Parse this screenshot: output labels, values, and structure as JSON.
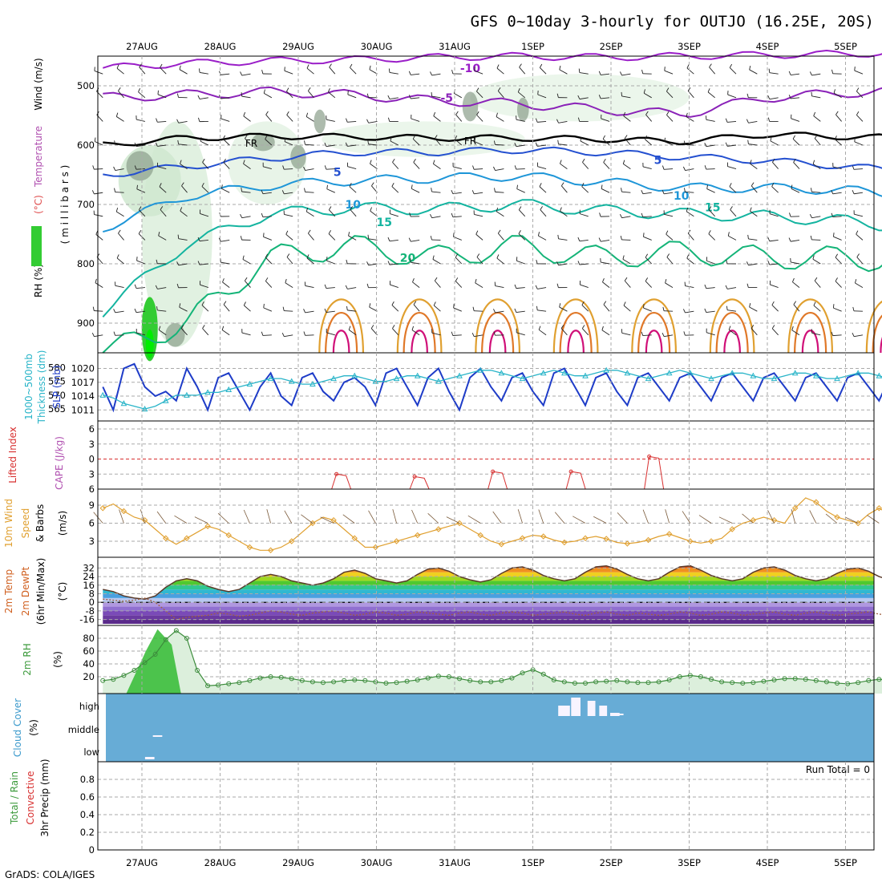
{
  "title": "GFS 0~10day 3-hourly for OUTJO (16.25E, 20S)",
  "footer": "GrADS: COLA/IGES",
  "chart_data": {
    "type": "meteogram",
    "dates": [
      "27AUG",
      "28AUG",
      "29AUG",
      "30AUG",
      "31AUG",
      "1SEP",
      "2SEP",
      "3SEP",
      "4SEP",
      "5SEP"
    ],
    "panels": {
      "upper": {
        "ylabels": [
          {
            "text": "Wind (m/s)",
            "color": "#000000"
          },
          {
            "text": "Temperature (°C)",
            "color": "#000000"
          },
          {
            "text": "RH (%)",
            "color": "#000000"
          },
          {
            "text": "(millibars)",
            "color": "#000000"
          }
        ],
        "ylabel_parts": {
          "wind": "Wind (m/s)",
          "temp_a": "Temperature ",
          "temp_b": "(°C)",
          "rh": "RH (%)",
          "mb": "( m i l l i b a r s )"
        },
        "pressure_ticks": [
          500,
          600,
          700,
          800,
          900
        ],
        "ylim": [
          450,
          950
        ],
        "isotherms": [
          {
            "label": "-10",
            "color": "#9a1ec8",
            "base": [
              470,
              462,
              458,
              456,
              452,
              450,
              452,
              450,
              448,
              446,
              444
            ],
            "amp": 6
          },
          {
            "label": "-5",
            "color": "#8a22b8",
            "base": [
              520,
              515,
              510,
              515,
              525,
              530,
              540,
              548,
              520,
              512,
              505
            ],
            "amp": 8
          },
          {
            "label": "FR",
            "color": "#000000",
            "base": [
              600,
              588,
              585,
              586,
              588,
              588,
              590,
              594,
              582,
              586,
              588
            ],
            "amp": 5
          },
          {
            "label": "5",
            "color": "#2450d0",
            "base": [
              650,
              636,
              622,
              612,
              612,
              608,
              612,
              620,
              626,
              636,
              648
            ],
            "amp": 6
          },
          {
            "label": "10",
            "color": "#1e96d8",
            "base": [
              740,
              686,
              668,
              660,
              656,
              652,
              662,
              672,
              672,
              676,
              690
            ],
            "amp": 8
          },
          {
            "label": "15",
            "color": "#14b4a0",
            "base": [
              880,
              768,
              716,
              706,
              708,
              700,
              710,
              716,
              720,
              728,
              744
            ],
            "amp": 10
          },
          {
            "label": "20",
            "color": "#14b478",
            "base": [
              950,
              900,
              790,
              770,
              790,
              770,
              790,
              780,
              790,
              790,
              800
            ],
            "amp": 20
          }
        ],
        "contour_labels": [
          {
            "text": "-10",
            "x": 4.2,
            "p": 470
          },
          {
            "text": "-5",
            "x": 3.9,
            "p": 520
          },
          {
            "text": "FR",
            "x": 1.4,
            "p": 596
          },
          {
            "text": "FR",
            "x": 4.2,
            "p": 592
          },
          {
            "text": "5",
            "x": 2.5,
            "p": 645
          },
          {
            "text": "5",
            "x": 6.6,
            "p": 625
          },
          {
            "text": "10",
            "x": 2.7,
            "p": 700
          },
          {
            "text": "10",
            "x": 6.9,
            "p": 685
          },
          {
            "text": "15",
            "x": 3.1,
            "p": 730
          },
          {
            "text": "15",
            "x": 7.3,
            "p": 705
          },
          {
            "text": "20",
            "x": 3.4,
            "p": 790
          }
        ],
        "warm_cells_day_offsets": [
          2.55,
          3.55,
          4.55,
          5.55,
          6.55,
          7.55,
          8.55,
          9.55
        ],
        "warm_cell_colors": [
          "#e0a030",
          "#e07828",
          "#d01078"
        ]
      },
      "slp": {
        "ylabel_left": [
          "1000~500mb",
          "Thickness (dm)"
        ],
        "ylabel_right": "SLP (mb)",
        "thickness_ticks": [
          565,
          570,
          575,
          580
        ],
        "slp_ticks": [
          1011,
          1014,
          1017,
          1020
        ],
        "slp_color": "#1e3cc8",
        "thickness_color": "#28b4c8",
        "slp": [
          1016,
          1011,
          1020,
          1021,
          1016,
          1014,
          1015,
          1013,
          1020,
          1016,
          1011,
          1018,
          1019,
          1015,
          1011,
          1016,
          1019,
          1014,
          1012,
          1018,
          1019,
          1015,
          1013,
          1017,
          1018,
          1016,
          1012,
          1019,
          1020,
          1016,
          1012,
          1018,
          1020,
          1015,
          1011,
          1018,
          1020,
          1016,
          1013,
          1018,
          1019,
          1015,
          1012,
          1019,
          1020,
          1016,
          1012,
          1018,
          1019,
          1015,
          1012,
          1018,
          1019,
          1016,
          1013,
          1018,
          1019,
          1016,
          1013,
          1018,
          1019,
          1016,
          1013,
          1018,
          1019,
          1016,
          1013,
          1018,
          1019,
          1016,
          1013,
          1018,
          1019,
          1016,
          1013,
          1018,
          1019,
          1016,
          1013,
          1018
        ],
        "thickness": [
          570,
          569,
          567,
          566,
          565,
          566,
          568,
          570,
          570,
          570,
          571,
          571,
          572,
          573,
          574,
          575,
          576,
          576,
          575,
          574,
          574,
          575,
          576,
          577,
          577,
          576,
          575,
          575,
          576,
          577,
          577,
          576,
          575,
          576,
          577,
          578,
          579,
          579,
          578,
          577,
          576,
          577,
          578,
          579,
          578,
          577,
          577,
          578,
          579,
          579,
          578,
          577,
          576,
          577,
          578,
          579,
          578,
          577,
          576,
          577,
          578,
          578,
          577,
          576,
          576,
          577,
          578,
          578,
          577,
          576,
          576,
          577,
          578,
          578,
          577,
          576,
          576,
          577,
          578,
          577
        ]
      },
      "cape": {
        "ylabel_left": "Lifted Index",
        "ylabel_right": "CAPE (J/kg)",
        "li_ticks": [
          -6,
          -3,
          0,
          3,
          6
        ],
        "li_color": "#d83030",
        "spikes": [
          {
            "day": 2.55,
            "li": 3
          },
          {
            "day": 3.55,
            "li": 3.5
          },
          {
            "day": 4.55,
            "li": 2.5
          },
          {
            "day": 5.55,
            "li": 2.5
          },
          {
            "day": 6.55,
            "li": -0.5
          }
        ]
      },
      "wind10": {
        "ylabel": [
          "10m Wind",
          "Speed",
          "& Barbs"
        ],
        "ylabel_unit": "(m/s)",
        "ticks": [
          3,
          6,
          9
        ],
        "color": "#e0a030",
        "speed": [
          8.5,
          9.2,
          8.0,
          7.0,
          6.5,
          5.0,
          3.5,
          2.5,
          3.5,
          4.5,
          5.5,
          5.0,
          4.0,
          3.0,
          2.0,
          1.5,
          1.5,
          2.0,
          3.0,
          4.5,
          6.0,
          7.0,
          6.5,
          5.0,
          3.5,
          2.0,
          2.0,
          2.5,
          3.0,
          3.5,
          4.0,
          4.5,
          5.0,
          5.5,
          6.0,
          5.0,
          4.0,
          3.0,
          2.5,
          3.0,
          3.5,
          4.0,
          3.8,
          3.2,
          2.8,
          3.0,
          3.5,
          3.8,
          3.4,
          2.8,
          2.6,
          2.8,
          3.2,
          3.8,
          4.2,
          3.6,
          3.0,
          2.7,
          3.0,
          3.5,
          5.0,
          6.0,
          6.5,
          7.0,
          6.5,
          6.0,
          8.5,
          10.2,
          9.5,
          8.0,
          7.0,
          6.5,
          6.0,
          7.5,
          8.5,
          7.5,
          6.0,
          5.0,
          5.5,
          6.5
        ]
      },
      "temp2m": {
        "ylabel": [
          "2m Temp",
          "2m DewPt",
          "(6hr Min/Max)"
        ],
        "ylabel_unit": "(°C)",
        "ticks": [
          32,
          24,
          16,
          8,
          0,
          -8,
          -16
        ],
        "temp": [
          12,
          10,
          6,
          4,
          3,
          6,
          14,
          20,
          22,
          20,
          15,
          12,
          10,
          12,
          18,
          24,
          26,
          24,
          20,
          18,
          16,
          18,
          22,
          28,
          30,
          27,
          22,
          20,
          18,
          20,
          26,
          31,
          32,
          29,
          24,
          21,
          19,
          21,
          27,
          32,
          33,
          30,
          25,
          22,
          20,
          22,
          28,
          33,
          34,
          31,
          26,
          22,
          20,
          22,
          28,
          33,
          34,
          30,
          25,
          22,
          20,
          22,
          28,
          32,
          33,
          30,
          25,
          22,
          20,
          22,
          27,
          31,
          32,
          29,
          24,
          21,
          20,
          21,
          22,
          23
        ],
        "dewpt": [
          3,
          2,
          1,
          2,
          4,
          0,
          -8,
          -16,
          -14,
          -13,
          -12,
          -10,
          -11,
          -13,
          -12,
          -10,
          -8,
          -9,
          -11,
          -12,
          -10,
          -9,
          -8,
          -10,
          -12,
          -11,
          -9,
          -10,
          -12,
          -11,
          -9,
          -10,
          -11,
          -12,
          -10,
          -9,
          -11,
          -12,
          -10,
          -9,
          -10,
          -12,
          -11,
          -10,
          -9,
          -11,
          -12,
          -10,
          -9,
          -11,
          -12,
          -10,
          -11,
          -12,
          -11,
          -9,
          -10,
          -12,
          -11,
          -9,
          -10,
          -12,
          -11,
          -10,
          -9,
          -11,
          -12,
          -10,
          -9,
          -11,
          -12,
          -11,
          -10,
          -9,
          -11,
          -12,
          -10,
          -9,
          -10,
          -11
        ]
      },
      "rh2m": {
        "ylabel": "2m RH",
        "ylabel_unit": "(%)",
        "ticks": [
          20,
          40,
          60,
          80
        ],
        "rh": [
          14,
          16,
          22,
          30,
          42,
          55,
          78,
          92,
          80,
          30,
          6,
          7,
          9,
          11,
          14,
          18,
          20,
          19,
          17,
          14,
          12,
          11,
          12,
          14,
          15,
          14,
          12,
          10,
          11,
          13,
          15,
          18,
          21,
          20,
          17,
          14,
          12,
          12,
          14,
          18,
          26,
          31,
          24,
          15,
          12,
          10,
          10,
          12,
          13,
          14,
          12,
          11,
          11,
          12,
          15,
          20,
          22,
          20,
          16,
          12,
          11,
          10,
          11,
          13,
          15,
          17,
          17,
          16,
          14,
          12,
          10,
          9,
          11,
          14,
          16,
          15,
          13,
          10,
          9,
          9
        ],
        "color": "#3c8c3c"
      },
      "cloud": {
        "ylabel": "Cloud Cover",
        "ylabel_unit": "(%)",
        "levels": [
          "high",
          "middle",
          "low"
        ],
        "bg_color": "#67acd6"
      },
      "precip": {
        "ylabel_left": [
          "Total / Rain",
          "Convective"
        ],
        "ylabel_mid": "3hr Precip (mm)",
        "ticks": [
          0,
          0.2,
          0.4,
          0.6,
          0.8
        ],
        "run_total": "Run Total = 0",
        "values": []
      }
    }
  }
}
